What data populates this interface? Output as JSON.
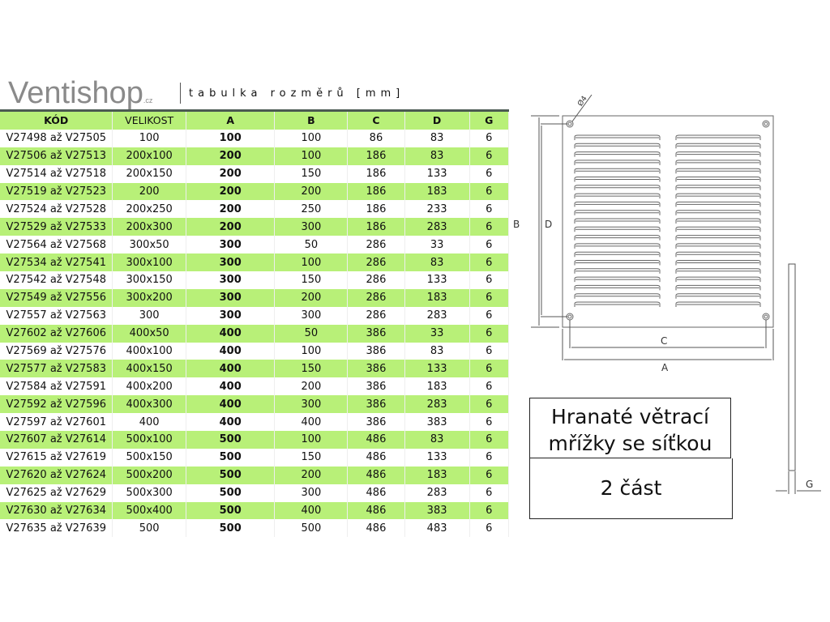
{
  "header": {
    "logo": "Ventishop",
    "logo_suffix": ".cz",
    "subtitle": "tabulka rozměrů [mm]"
  },
  "table": {
    "columns": [
      "KÓD",
      "VELIKOST",
      "A",
      "B",
      "C",
      "D",
      "G"
    ],
    "rows": [
      [
        "V27498 až V27505",
        "100",
        "100",
        "100",
        "86",
        "83",
        "6"
      ],
      [
        "V27506 až V27513",
        "200x100",
        "200",
        "100",
        "186",
        "83",
        "6"
      ],
      [
        "V27514 až V27518",
        "200x150",
        "200",
        "150",
        "186",
        "133",
        "6"
      ],
      [
        "V27519 až V27523",
        "200",
        "200",
        "200",
        "186",
        "183",
        "6"
      ],
      [
        "V27524 až V27528",
        "200x250",
        "200",
        "250",
        "186",
        "233",
        "6"
      ],
      [
        "V27529 až V27533",
        "200x300",
        "200",
        "300",
        "186",
        "283",
        "6"
      ],
      [
        "V27564 až V27568",
        "300x50",
        "300",
        "50",
        "286",
        "33",
        "6"
      ],
      [
        "V27534 až V27541",
        "300x100",
        "300",
        "100",
        "286",
        "83",
        "6"
      ],
      [
        "V27542 až V27548",
        "300x150",
        "300",
        "150",
        "286",
        "133",
        "6"
      ],
      [
        "V27549 až V27556",
        "300x200",
        "300",
        "200",
        "286",
        "183",
        "6"
      ],
      [
        "V27557 až V27563",
        "300",
        "300",
        "300",
        "286",
        "283",
        "6"
      ],
      [
        "V27602 až V27606",
        "400x50",
        "400",
        "50",
        "386",
        "33",
        "6"
      ],
      [
        "V27569 až V27576",
        "400x100",
        "400",
        "100",
        "386",
        "83",
        "6"
      ],
      [
        "V27577 až V27583",
        "400x150",
        "400",
        "150",
        "386",
        "133",
        "6"
      ],
      [
        "V27584 až V27591",
        "400x200",
        "400",
        "200",
        "386",
        "183",
        "6"
      ],
      [
        "V27592 až V27596",
        "400x300",
        "400",
        "300",
        "386",
        "283",
        "6"
      ],
      [
        "V27597 až V27601",
        "400",
        "400",
        "400",
        "386",
        "383",
        "6"
      ],
      [
        "V27607 až V27614",
        "500x100",
        "500",
        "100",
        "486",
        "83",
        "6"
      ],
      [
        "V27615 až V27619",
        "500x150",
        "500",
        "150",
        "486",
        "133",
        "6"
      ],
      [
        "V27620 až V27624",
        "500x200",
        "500",
        "200",
        "486",
        "183",
        "6"
      ],
      [
        "V27625 až V27629",
        "500x300",
        "500",
        "300",
        "486",
        "283",
        "6"
      ],
      [
        "V27630 až V27634",
        "500x400",
        "500",
        "400",
        "486",
        "383",
        "6"
      ],
      [
        "V27635 až V27639",
        "500",
        "500",
        "500",
        "486",
        "483",
        "6"
      ]
    ]
  },
  "drawing": {
    "labels": {
      "hole": "Ø4",
      "A": "A",
      "B": "B",
      "C": "C",
      "D": "D",
      "G": "G"
    }
  },
  "info": {
    "title": "Hranaté větrací mřížky se síťkou",
    "part": "2 část"
  },
  "colors": {
    "row_highlight": "#b8f078",
    "header_line": "#4b5a52"
  }
}
